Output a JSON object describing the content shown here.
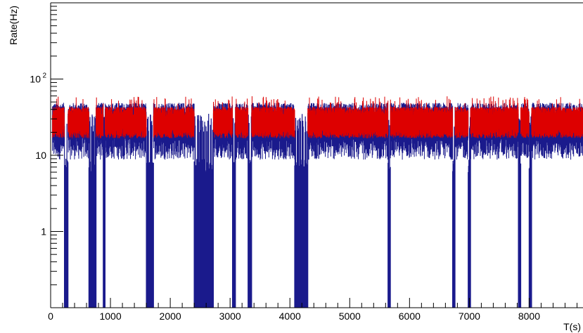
{
  "chart_data": {
    "type": "line",
    "title": "",
    "xlabel": "T(s)",
    "ylabel": "Rate(Hz)",
    "xlim": [
      0,
      8900
    ],
    "ylim": [
      0.1,
      1000
    ],
    "y_scale": "log",
    "grid": false,
    "legend": "none",
    "x_ticks": [
      {
        "value": 0,
        "label": "0"
      },
      {
        "value": 1000,
        "label": "1000"
      },
      {
        "value": 2000,
        "label": "2000"
      },
      {
        "value": 3000,
        "label": "3000"
      },
      {
        "value": 4000,
        "label": "4000"
      },
      {
        "value": 5000,
        "label": "5000"
      },
      {
        "value": 6000,
        "label": "6000"
      },
      {
        "value": 7000,
        "label": "7000"
      },
      {
        "value": 8000,
        "label": "8000"
      }
    ],
    "y_ticks": [
      {
        "value": 1,
        "label": "1"
      },
      {
        "value": 10,
        "label": "10"
      },
      {
        "value": 100,
        "label": "10",
        "exponent": "2"
      }
    ],
    "series": [
      {
        "color": "#1a1a8c",
        "description_level": "baseline",
        "baseline_rate": 25,
        "segments": [
          [
            30,
            230
          ],
          [
            290,
            640
          ],
          [
            760,
            880
          ],
          [
            910,
            1600
          ],
          [
            1720,
            2400
          ],
          [
            2720,
            3040
          ],
          [
            3090,
            3300
          ],
          [
            3360,
            4080
          ],
          [
            4300,
            5640
          ],
          [
            5680,
            6720
          ],
          [
            6760,
            6980
          ],
          [
            7020,
            7820
          ],
          [
            7860,
            8000
          ],
          [
            8040,
            8900
          ]
        ],
        "dropouts": [
          [
            230,
            290
          ],
          [
            640,
            760
          ],
          [
            880,
            910
          ],
          [
            1600,
            1720
          ],
          [
            2400,
            2720
          ],
          [
            3040,
            3090
          ],
          [
            3300,
            3360
          ],
          [
            4080,
            4300
          ],
          [
            5640,
            5680
          ],
          [
            6720,
            6760
          ],
          [
            6980,
            7020
          ],
          [
            7820,
            7860
          ],
          [
            8000,
            8040
          ]
        ]
      },
      {
        "color": "#dd0000",
        "description_level": "baseline",
        "baseline_rate": 27,
        "segments": [
          [
            30,
            230
          ],
          [
            290,
            640
          ],
          [
            760,
            880
          ],
          [
            910,
            1600
          ],
          [
            1720,
            2400
          ],
          [
            2720,
            3040
          ],
          [
            3090,
            3300
          ],
          [
            3360,
            4080
          ],
          [
            4300,
            5640
          ],
          [
            5680,
            6720
          ],
          [
            6760,
            6980
          ],
          [
            7020,
            7820
          ],
          [
            7860,
            8000
          ],
          [
            8040,
            8900
          ]
        ]
      }
    ]
  },
  "colors": {
    "blue_series": "#1a1a8c",
    "red_series": "#dd0000",
    "axis": "#000000",
    "background": "#ffffff"
  }
}
